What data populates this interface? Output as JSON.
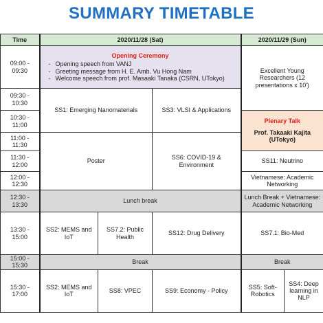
{
  "title": "SUMMARY TIMETABLE",
  "headers": {
    "time": "Time",
    "day1": "2020/11/28 (Sat)",
    "day2": "2020/11/29 (Sun)"
  },
  "times": [
    "09:00 - 09:30",
    "09:30 - 10:30",
    "10:30 - 11:00",
    "11:00 - 11:30",
    "11:30 - 12:00",
    "12:00 - 12:30",
    "12:30 - 13:30",
    "13:30 - 15:00",
    "15:00 - 15:30",
    "15:30 - 17:00"
  ],
  "opening": {
    "title": "Opening Ceremony",
    "items": [
      "Opening speech from VANJ",
      "Greeting message from H. E. Amb. Vu Hong Nam",
      "Welcome speech from prof. Masaaki Tanaka (CSRN, UTokyo)"
    ]
  },
  "sat": {
    "ss1": "SS1: Emerging Nanomaterials",
    "ss3": "SS3: VLSI & Applications",
    "poster": "Poster",
    "ss6": "SS6: COVID-19 & Environment",
    "lunch": "Lunch break",
    "ss2a": "SS2: MEMS and IoT",
    "ss72": "SS7.2: Public Health",
    "ss12": "SS12: Drug Delivery",
    "break": "Break",
    "ss2b": "SS2: MEMS and IoT",
    "ss8": "SS8: VPEC",
    "ss9": "SS9: Economy - Policy"
  },
  "sun": {
    "young": "Excellent Young Researchers (12 presentations x 10')",
    "plenary_title": "Plenary Talk",
    "plenary_speaker": "Prof. Takaaki Kajita (UTokyo)",
    "ss11": "SS11: Neutrino",
    "viet": "Vietnamese: Academic Networking",
    "lunch": "Lunch Break + Vietnamese: Academic Networking",
    "ss71": "SS7.1: Bio-Med",
    "break": "Break",
    "ss5": "SS5: Soft-Robotics",
    "ss4": "SS4: Deep learning in NLP"
  },
  "colors": {
    "title": "#1f6fc2",
    "header": "#d6ead3",
    "opening": "#e6e1ee",
    "plenary": "#fbe3d1",
    "gray": "#d9d9d9",
    "red": "#e0201a"
  }
}
